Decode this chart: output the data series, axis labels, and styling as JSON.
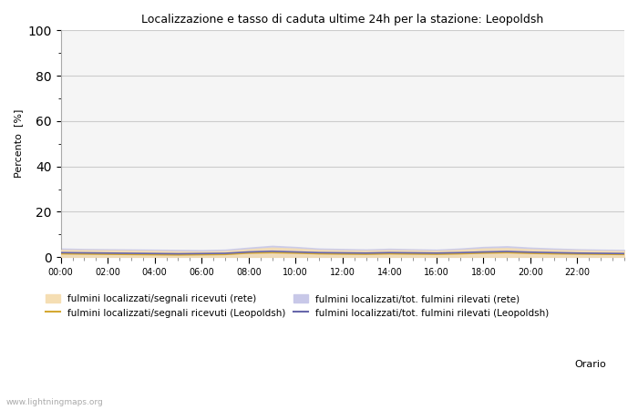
{
  "title": "Localizzazione e tasso di caduta ultime 24h per la stazione: Leopoldsh",
  "xlabel": "Orario",
  "ylabel": "Percento  [%]",
  "ylim": [
    0,
    100
  ],
  "yticks": [
    0,
    20,
    40,
    60,
    80,
    100
  ],
  "yticks_minor": [
    10,
    30,
    50,
    70,
    90
  ],
  "background_color": "#ffffff",
  "plot_bg_color": "#f5f5f5",
  "grid_color": "#cccccc",
  "watermark": "www.lightningmaps.org",
  "legend_entries": [
    {
      "label": "fulmini localizzati/segnali ricevuti (rete)",
      "type": "fill",
      "color": "#f5deb3"
    },
    {
      "label": "fulmini localizzati/segnali ricevuti (Leopoldsh)",
      "type": "line",
      "color": "#d4a832"
    },
    {
      "label": "fulmini localizzati/tot. fulmini rilevati (rete)",
      "type": "fill",
      "color": "#c8c8e8"
    },
    {
      "label": "fulmini localizzati/tot. fulmini rilevati (Leopoldsh)",
      "type": "line",
      "color": "#6666aa"
    }
  ],
  "x_hours": [
    0,
    1,
    2,
    3,
    4,
    5,
    6,
    7,
    8,
    9,
    10,
    11,
    12,
    13,
    14,
    15,
    16,
    17,
    18,
    19,
    20,
    21,
    22,
    23,
    24
  ],
  "fill_rete_segnali": [
    3.2,
    3.1,
    3.0,
    2.9,
    2.8,
    2.6,
    2.5,
    2.7,
    3.5,
    4.2,
    3.8,
    3.2,
    3.0,
    2.9,
    3.1,
    3.0,
    2.8,
    3.2,
    3.8,
    4.0,
    3.5,
    3.2,
    3.0,
    2.8,
    2.7
  ],
  "fill_rete_fulmini": [
    3.8,
    3.6,
    3.5,
    3.4,
    3.3,
    3.2,
    3.1,
    3.3,
    4.2,
    5.0,
    4.5,
    3.8,
    3.6,
    3.4,
    3.7,
    3.5,
    3.3,
    3.8,
    4.5,
    4.8,
    4.2,
    3.8,
    3.5,
    3.3,
    3.2
  ],
  "line_leopoldsh_segnali": [
    1.5,
    1.4,
    1.3,
    1.2,
    1.1,
    1.0,
    1.1,
    1.2,
    1.8,
    2.0,
    1.8,
    1.5,
    1.4,
    1.3,
    1.5,
    1.4,
    1.3,
    1.5,
    1.8,
    2.0,
    1.7,
    1.5,
    1.4,
    1.3,
    1.2
  ],
  "line_leopoldsh_fulmini": [
    2.0,
    1.9,
    1.8,
    1.7,
    1.6,
    1.5,
    1.6,
    1.7,
    2.3,
    2.6,
    2.3,
    2.0,
    1.9,
    1.8,
    2.0,
    1.9,
    1.8,
    2.0,
    2.3,
    2.5,
    2.2,
    2.0,
    1.8,
    1.7,
    1.6
  ]
}
